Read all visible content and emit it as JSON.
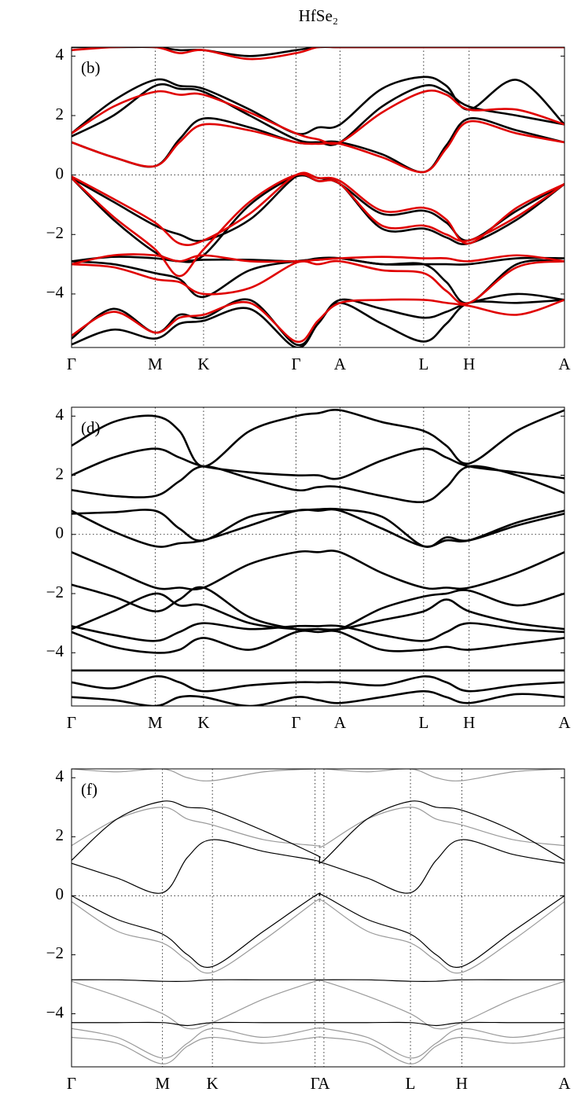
{
  "chart_data": [
    {
      "type": "line",
      "title": "HfSe₂",
      "annotation": "(b)",
      "x": [
        0,
        0.285,
        0.57,
        0.735,
        0.9,
        1.215,
        1.53,
        1.68,
        1.83,
        2.115,
        2.4,
        2.555,
        2.71,
        3.035,
        3.36
      ],
      "xlim": [
        0,
        3.36
      ],
      "xticks": [
        {
          "value": 0,
          "label": "Γ"
        },
        {
          "value": 0.57,
          "label": "M"
        },
        {
          "value": 0.9,
          "label": "K"
        },
        {
          "value": 1.53,
          "label": "Γ"
        },
        {
          "value": 1.83,
          "label": "A"
        },
        {
          "value": 2.4,
          "label": "L"
        },
        {
          "value": 2.71,
          "label": "H"
        },
        {
          "value": 3.36,
          "label": "A"
        }
      ],
      "ylim": [
        -5.8,
        4.3
      ],
      "yticks": [
        {
          "value": -4,
          "label": "−4"
        },
        {
          "value": -2,
          "label": "−2"
        },
        0,
        2,
        4
      ],
      "grid": true,
      "series": [
        {
          "color": "#000000",
          "values": [
            -0.1,
            -0.9,
            -1.7,
            -2.0,
            -2.2,
            -1.5,
            -0.05,
            -0.1,
            -0.3,
            -1.3,
            -1.2,
            -1.6,
            -2.2,
            -1.2,
            -0.3
          ]
        },
        {
          "color": "#000000",
          "values": [
            -0.1,
            -1.5,
            -2.6,
            -2.9,
            -2.7,
            -1.0,
            -0.05,
            -0.2,
            -0.3,
            -1.8,
            -1.8,
            -2.1,
            -2.3,
            -1.5,
            -0.3
          ]
        },
        {
          "color": "#000000",
          "values": [
            -2.9,
            -2.75,
            -2.8,
            -2.9,
            -2.85,
            -2.85,
            -2.9,
            -2.8,
            -2.8,
            -3.0,
            -3.0,
            -3.0,
            -3.0,
            -2.8,
            -2.8
          ]
        },
        {
          "color": "#000000",
          "values": [
            -2.9,
            -3.0,
            -3.3,
            -3.5,
            -4.1,
            -3.2,
            -2.9,
            -2.85,
            -2.8,
            -3.0,
            -3.0,
            -3.6,
            -4.3,
            -3.0,
            -2.9
          ]
        },
        {
          "color": "#000000",
          "values": [
            -5.5,
            -4.5,
            -5.3,
            -4.7,
            -4.8,
            -4.2,
            -5.7,
            -5.0,
            -4.2,
            -4.5,
            -4.8,
            -4.6,
            -4.3,
            -4.0,
            -4.2
          ]
        },
        {
          "color": "#000000",
          "values": [
            -5.7,
            -5.2,
            -5.5,
            -5.0,
            -4.9,
            -4.5,
            -5.8,
            -5.0,
            -4.3,
            -5.0,
            -5.6,
            -5.0,
            -4.3,
            -4.3,
            -4.2
          ]
        },
        {
          "color": "#000000",
          "values": [
            1.1,
            0.6,
            0.3,
            1.2,
            1.9,
            1.6,
            1.1,
            1.1,
            1.1,
            0.7,
            0.1,
            1.0,
            1.9,
            1.5,
            1.1
          ]
        },
        {
          "color": "#000000",
          "values": [
            1.3,
            2.0,
            3.0,
            2.9,
            2.8,
            2.0,
            1.2,
            1.1,
            1.1,
            2.3,
            3.0,
            2.8,
            2.3,
            2.0,
            1.7
          ]
        },
        {
          "color": "#000000",
          "values": [
            1.4,
            2.5,
            3.2,
            3.0,
            2.9,
            2.2,
            1.4,
            1.6,
            1.7,
            2.9,
            3.3,
            3.0,
            2.2,
            3.2,
            1.7
          ]
        },
        {
          "color": "#000000",
          "values": [
            4.3,
            4.3,
            4.3,
            4.2,
            4.2,
            4.0,
            4.2,
            4.3,
            4.3,
            4.3,
            4.3,
            4.3,
            4.3,
            4.3,
            4.3
          ]
        },
        {
          "color": "#e00000",
          "values": [
            -0.05,
            -0.8,
            -1.6,
            -2.3,
            -2.2,
            -1.3,
            0.0,
            -0.1,
            -0.2,
            -1.2,
            -1.1,
            -1.5,
            -2.3,
            -1.1,
            -0.3
          ]
        },
        {
          "color": "#e00000",
          "values": [
            -0.1,
            -1.4,
            -2.5,
            -3.4,
            -2.5,
            -0.9,
            0.0,
            -0.2,
            -0.3,
            -1.7,
            -1.7,
            -2.0,
            -2.2,
            -1.4,
            -0.3
          ]
        },
        {
          "color": "#e00000",
          "values": [
            -3.0,
            -2.7,
            -2.7,
            -2.9,
            -2.7,
            -2.9,
            -2.9,
            -2.85,
            -2.8,
            -2.75,
            -2.8,
            -2.8,
            -2.9,
            -2.7,
            -2.9
          ]
        },
        {
          "color": "#e00000",
          "values": [
            -3.0,
            -3.1,
            -3.5,
            -3.6,
            -4.0,
            -3.8,
            -2.95,
            -3.0,
            -2.9,
            -3.2,
            -3.3,
            -3.9,
            -4.3,
            -3.1,
            -2.9
          ]
        },
        {
          "color": "#e00000",
          "values": [
            -5.4,
            -4.6,
            -5.3,
            -4.8,
            -4.7,
            -4.3,
            -5.6,
            -4.9,
            -4.3,
            -4.2,
            -4.2,
            -4.3,
            -4.4,
            -4.7,
            -4.2
          ]
        },
        {
          "color": "#e00000",
          "values": [
            1.1,
            0.6,
            0.3,
            1.1,
            1.7,
            1.5,
            1.1,
            1.05,
            1.05,
            0.6,
            0.1,
            0.9,
            1.8,
            1.4,
            1.1
          ]
        },
        {
          "color": "#e00000",
          "values": [
            1.4,
            2.3,
            2.8,
            2.7,
            2.7,
            2.1,
            1.4,
            1.2,
            1.1,
            2.1,
            2.8,
            2.7,
            2.2,
            2.2,
            1.7
          ]
        },
        {
          "color": "#e00000",
          "values": [
            4.2,
            4.3,
            4.3,
            4.1,
            4.2,
            3.9,
            4.1,
            4.3,
            4.3,
            4.3,
            4.3,
            4.3,
            4.3,
            4.3,
            4.3
          ]
        }
      ]
    },
    {
      "type": "line",
      "annotation": "(d)",
      "x": [
        0,
        0.285,
        0.57,
        0.735,
        0.9,
        1.215,
        1.53,
        1.68,
        1.83,
        2.115,
        2.4,
        2.555,
        2.71,
        3.035,
        3.36
      ],
      "xlim": [
        0,
        3.36
      ],
      "xticks": [
        {
          "value": 0,
          "label": "Γ"
        },
        {
          "value": 0.57,
          "label": "M"
        },
        {
          "value": 0.9,
          "label": "K"
        },
        {
          "value": 1.53,
          "label": "Γ"
        },
        {
          "value": 1.83,
          "label": "A"
        },
        {
          "value": 2.4,
          "label": "L"
        },
        {
          "value": 2.71,
          "label": "H"
        },
        {
          "value": 3.36,
          "label": "A"
        }
      ],
      "ylim": [
        -5.8,
        4.3
      ],
      "yticks": [
        {
          "value": -4,
          "label": "−4"
        },
        {
          "value": -2,
          "label": "−2"
        },
        0,
        2,
        4
      ],
      "grid": true,
      "series": [
        {
          "color": "#000000",
          "values": [
            0.7,
            0.75,
            0.8,
            0.2,
            -0.2,
            0.6,
            0.8,
            0.85,
            0.85,
            0.6,
            -0.4,
            -0.1,
            -0.2,
            0.3,
            0.7
          ]
        },
        {
          "color": "#000000",
          "values": [
            0.8,
            0.1,
            -0.4,
            -0.3,
            -0.2,
            0.3,
            0.8,
            0.8,
            0.8,
            0.2,
            -0.4,
            -0.2,
            -0.2,
            0.4,
            0.8
          ]
        },
        {
          "color": "#000000",
          "values": [
            1.5,
            1.3,
            1.3,
            1.8,
            2.3,
            1.9,
            1.5,
            1.6,
            1.6,
            1.3,
            1.1,
            1.6,
            2.3,
            2.0,
            1.4
          ]
        },
        {
          "color": "#000000",
          "values": [
            2.0,
            2.6,
            2.9,
            2.6,
            2.3,
            2.1,
            2.0,
            2.0,
            1.9,
            2.5,
            2.9,
            2.6,
            2.3,
            2.1,
            1.9
          ]
        },
        {
          "color": "#000000",
          "values": [
            3.0,
            3.8,
            4.0,
            3.5,
            2.3,
            3.5,
            4.0,
            4.1,
            4.2,
            3.8,
            3.5,
            3.0,
            2.4,
            3.5,
            4.2
          ]
        },
        {
          "color": "#000000",
          "values": [
            -0.6,
            -1.2,
            -1.8,
            -1.8,
            -1.8,
            -1.0,
            -0.6,
            -0.6,
            -0.6,
            -1.3,
            -1.8,
            -1.8,
            -1.8,
            -1.3,
            -0.6
          ]
        },
        {
          "color": "#000000",
          "values": [
            -1.7,
            -2.1,
            -2.6,
            -2.2,
            -1.8,
            -2.8,
            -3.2,
            -3.2,
            -3.2,
            -2.5,
            -2.1,
            -2.0,
            -1.9,
            -2.4,
            -2.0
          ]
        },
        {
          "color": "#000000",
          "values": [
            -3.2,
            -2.6,
            -2.0,
            -2.4,
            -2.4,
            -3.0,
            -3.2,
            -3.2,
            -3.2,
            -2.9,
            -2.6,
            -2.2,
            -2.6,
            -3.0,
            -3.2
          ]
        },
        {
          "color": "#000000",
          "values": [
            -3.1,
            -3.4,
            -3.6,
            -3.3,
            -3.0,
            -3.2,
            -3.1,
            -3.1,
            -3.1,
            -3.4,
            -3.6,
            -3.3,
            -3.0,
            -3.2,
            -3.3
          ]
        },
        {
          "color": "#000000",
          "values": [
            -3.3,
            -3.8,
            -4.0,
            -3.9,
            -3.5,
            -3.9,
            -3.3,
            -3.3,
            -3.3,
            -3.9,
            -3.9,
            -3.8,
            -3.9,
            -3.7,
            -3.5
          ]
        },
        {
          "color": "#000000",
          "values": [
            -4.6,
            -4.6,
            -4.6,
            -4.6,
            -4.6,
            -4.6,
            -4.6,
            -4.6,
            -4.6,
            -4.6,
            -4.6,
            -4.6,
            -4.6,
            -4.6,
            -4.6
          ]
        },
        {
          "color": "#000000",
          "values": [
            -5.0,
            -5.2,
            -4.8,
            -5.0,
            -5.3,
            -5.1,
            -5.0,
            -5.0,
            -5.0,
            -5.1,
            -4.8,
            -5.0,
            -5.3,
            -5.1,
            -5.0
          ]
        },
        {
          "color": "#000000",
          "values": [
            -5.5,
            -5.6,
            -5.8,
            -5.5,
            -5.5,
            -5.8,
            -5.5,
            -5.6,
            -5.7,
            -5.5,
            -5.3,
            -5.5,
            -5.7,
            -5.4,
            -5.5
          ]
        }
      ]
    },
    {
      "type": "line",
      "annotation": "(f)",
      "x": [
        0,
        0.31,
        0.62,
        0.79,
        0.96,
        1.31,
        1.66,
        1.69,
        1.72,
        2.015,
        2.31,
        2.485,
        2.66,
        3.01,
        3.36
      ],
      "xlim": [
        0,
        3.36
      ],
      "xticks": [
        {
          "value": 0,
          "label": "Γ"
        },
        {
          "value": 0.62,
          "label": "M"
        },
        {
          "value": 0.96,
          "label": "K"
        },
        {
          "value": 1.66,
          "label": "Γ"
        },
        {
          "value": 1.72,
          "label": "A"
        },
        {
          "value": 2.31,
          "label": "L"
        },
        {
          "value": 2.66,
          "label": "H"
        },
        {
          "value": 3.36,
          "label": "A"
        }
      ],
      "ylim": [
        -5.8,
        4.3
      ],
      "yticks": [
        {
          "value": -4,
          "label": "−4"
        },
        {
          "value": -2,
          "label": "−2"
        },
        0,
        2,
        4
      ],
      "grid": true,
      "series": [
        {
          "color": "#9a9a9a",
          "values": [
            1.7,
            2.6,
            3.0,
            2.6,
            2.4,
            1.9,
            1.7,
            1.7,
            1.7,
            2.6,
            3.0,
            2.6,
            2.4,
            1.9,
            1.7
          ]
        },
        {
          "color": "#9a9a9a",
          "values": [
            4.3,
            4.2,
            4.3,
            4.0,
            3.9,
            4.2,
            4.3,
            4.3,
            4.3,
            4.2,
            4.3,
            4.0,
            3.9,
            4.2,
            4.3
          ]
        },
        {
          "color": "#9a9a9a",
          "values": [
            -0.2,
            -1.2,
            -1.6,
            -2.2,
            -2.6,
            -1.5,
            -0.2,
            -0.2,
            -0.2,
            -1.2,
            -1.6,
            -2.2,
            -2.6,
            -1.5,
            -0.2
          ]
        },
        {
          "color": "#9a9a9a",
          "values": [
            -2.9,
            -3.4,
            -4.0,
            -4.5,
            -4.3,
            -3.5,
            -2.9,
            -2.9,
            -2.9,
            -3.4,
            -4.0,
            -4.5,
            -4.3,
            -3.5,
            -2.9
          ]
        },
        {
          "color": "#9a9a9a",
          "values": [
            -4.8,
            -5.0,
            -5.7,
            -5.1,
            -4.8,
            -5.0,
            -4.8,
            -4.8,
            -4.8,
            -5.0,
            -5.7,
            -5.1,
            -4.8,
            -5.0,
            -4.8
          ]
        },
        {
          "color": "#9a9a9a",
          "values": [
            -4.5,
            -4.8,
            -5.5,
            -5.0,
            -4.5,
            -4.8,
            -4.5,
            -4.5,
            -4.5,
            -4.8,
            -5.5,
            -5.0,
            -4.5,
            -4.8,
            -4.5
          ]
        },
        {
          "color": "#000000",
          "values": [
            1.1,
            0.6,
            0.1,
            1.3,
            1.9,
            1.5,
            1.2,
            1.1,
            1.1,
            0.6,
            0.1,
            1.2,
            1.9,
            1.4,
            1.1
          ]
        },
        {
          "color": "#000000",
          "values": [
            1.2,
            2.6,
            3.2,
            3.0,
            2.9,
            2.2,
            1.4,
            1.3,
            1.2,
            2.6,
            3.2,
            3.0,
            2.9,
            2.2,
            1.2
          ]
        },
        {
          "color": "#000000",
          "values": [
            0,
            -0.8,
            -1.3,
            -2.0,
            -2.4,
            -1.2,
            0,
            0,
            0,
            -0.8,
            -1.3,
            -2.0,
            -2.4,
            -1.2,
            0
          ]
        },
        {
          "color": "#000000",
          "values": [
            -2.85,
            -2.85,
            -2.9,
            -2.9,
            -2.85,
            -2.85,
            -2.85,
            -2.85,
            -2.85,
            -2.85,
            -2.9,
            -2.9,
            -2.85,
            -2.85,
            -2.85
          ]
        },
        {
          "color": "#000000",
          "values": [
            -4.3,
            -4.3,
            -4.3,
            -4.4,
            -4.3,
            -4.3,
            -4.3,
            -4.3,
            -4.3,
            -4.3,
            -4.3,
            -4.4,
            -4.3,
            -4.3,
            -4.3
          ]
        }
      ]
    }
  ]
}
